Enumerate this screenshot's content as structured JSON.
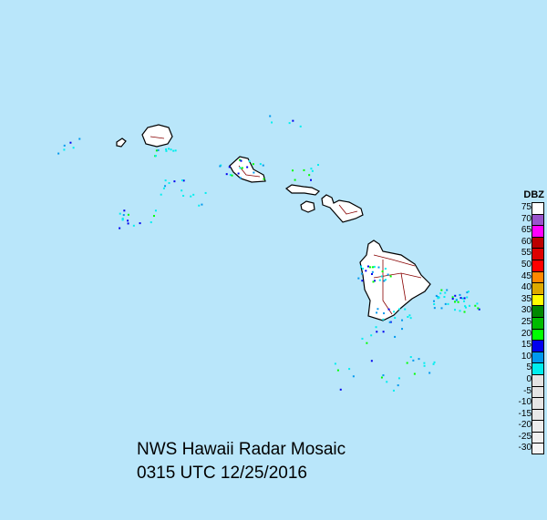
{
  "title": "NWS Hawaii Radar Mosaic",
  "timestamp": "0315 UTC 12/25/2016",
  "legend": {
    "unit": "DBZ",
    "items": [
      {
        "label": "75",
        "color": "#ffffff"
      },
      {
        "label": "70",
        "color": "#9955cc"
      },
      {
        "label": "65",
        "color": "#ff00ff"
      },
      {
        "label": "60",
        "color": "#bb0000"
      },
      {
        "label": "55",
        "color": "#dd0000"
      },
      {
        "label": "50",
        "color": "#ff0000"
      },
      {
        "label": "45",
        "color": "#ff8800"
      },
      {
        "label": "40",
        "color": "#ddaa00"
      },
      {
        "label": "35",
        "color": "#ffff00"
      },
      {
        "label": "30",
        "color": "#008800"
      },
      {
        "label": "25",
        "color": "#00bb00"
      },
      {
        "label": "20",
        "color": "#00ff00"
      },
      {
        "label": "15",
        "color": "#0000ee"
      },
      {
        "label": "10",
        "color": "#0099ee"
      },
      {
        "label": "5",
        "color": "#00eeee"
      },
      {
        "label": "0",
        "color": "#e4e4e4"
      },
      {
        "label": "-5",
        "color": "#e4e4e4"
      },
      {
        "label": "-10",
        "color": "#e6e6e6"
      },
      {
        "label": "-15",
        "color": "#e8e8e8"
      },
      {
        "label": "-20",
        "color": "#ececec"
      },
      {
        "label": "-25",
        "color": "#f0f0f0"
      },
      {
        "label": "-30",
        "color": "#f4f4f4"
      }
    ]
  },
  "colors": {
    "ocean": "#b9e6fa",
    "land": "#ffffff",
    "coast": "#000000",
    "roads": "#880000"
  }
}
